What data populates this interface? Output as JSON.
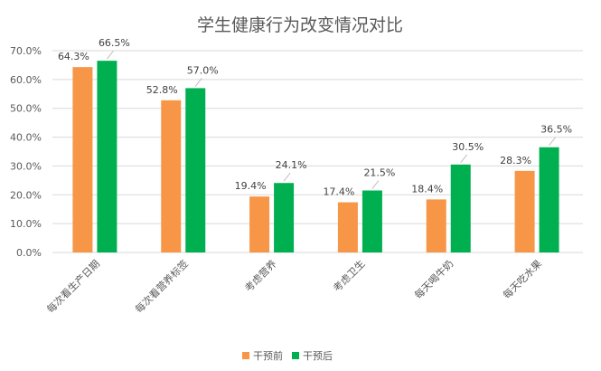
{
  "chart_data": {
    "type": "bar",
    "title": "学生健康行为改变情况对比",
    "categories": [
      "每次看生产日期",
      "每次看营养标签",
      "考虑营养",
      "考虑卫生",
      "每天喝牛奶",
      "每天吃水果"
    ],
    "series": [
      {
        "name": "干预前",
        "color": "#F79646",
        "values": [
          64.3,
          52.8,
          19.4,
          17.4,
          18.4,
          28.3
        ]
      },
      {
        "name": "干预后",
        "color": "#00B050",
        "values": [
          66.5,
          57.0,
          24.1,
          21.5,
          30.5,
          36.5
        ]
      }
    ],
    "yticks": [
      "0.0%",
      "10.0%",
      "20.0%",
      "30.0%",
      "40.0%",
      "50.0%",
      "60.0%",
      "70.0%"
    ],
    "ylim": [
      0,
      70
    ],
    "unit": "%",
    "grid": true,
    "legend": "bottom"
  }
}
